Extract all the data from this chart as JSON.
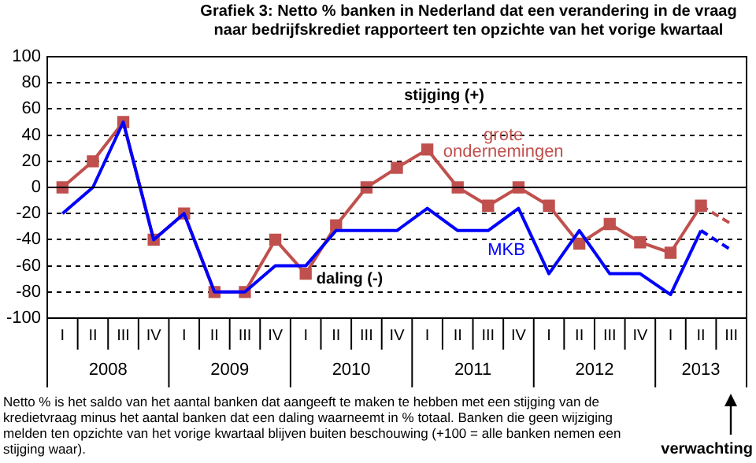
{
  "chart_data": {
    "type": "line",
    "title": "Grafiek 3: Netto % banken in Nederland dat een verandering in de vraag naar bedrijfskrediet rapporteert ten opzichte van het vorige kwartaal",
    "categories": [
      "I",
      "II",
      "III",
      "IV",
      "I",
      "II",
      "III",
      "IV",
      "I",
      "II",
      "III",
      "IV",
      "I",
      "II",
      "III",
      "IV",
      "I",
      "II",
      "III",
      "IV",
      "I",
      "II",
      "III"
    ],
    "series": [
      {
        "name": "MKB",
        "color": "#0000ff",
        "marker": "none",
        "values": [
          -20,
          0,
          50,
          -40,
          -20,
          -80,
          -80,
          -60,
          -60,
          -33,
          -33,
          -33,
          -16,
          -33,
          -33,
          -16,
          -66,
          -33,
          -66,
          -66,
          -82,
          -33,
          null
        ]
      },
      {
        "name": "grote ondernemingen",
        "color": "#c0504d",
        "marker": "square",
        "values": [
          0,
          20,
          50,
          -40,
          -20,
          -80,
          -80,
          -40,
          -66,
          -29,
          0,
          15,
          29,
          0,
          -14,
          0,
          -14,
          -43,
          -28,
          -42,
          -50,
          -14,
          null
        ]
      },
      {
        "color": "#0000ff",
        "marker": "none",
        "line_style": "dashed",
        "values": [
          null,
          null,
          null,
          null,
          null,
          null,
          null,
          null,
          null,
          null,
          null,
          null,
          null,
          null,
          null,
          null,
          null,
          null,
          null,
          null,
          null,
          -33,
          -48
        ]
      },
      {
        "color": "#c0504d",
        "marker": "none",
        "line_style": "dashed",
        "values": [
          null,
          null,
          null,
          null,
          null,
          null,
          null,
          null,
          null,
          null,
          null,
          null,
          null,
          null,
          null,
          null,
          null,
          null,
          null,
          null,
          null,
          -14,
          -28
        ]
      }
    ],
    "ylim": [
      -100,
      100
    ],
    "yticks": [
      -100,
      -80,
      -60,
      -40,
      -20,
      0,
      20,
      40,
      60,
      80,
      100
    ],
    "grid": "y",
    "legend": false,
    "ref_lines": [
      {
        "axis": "y",
        "value": 0,
        "color": "#000000",
        "line_style": "solid"
      }
    ],
    "annotations": [
      "stijging (+)",
      "daling (-)",
      "2008",
      "2009",
      "2010",
      "2011",
      "2012",
      "2013",
      "verwachting",
      "Netto % is het saldo van het aantal banken dat aangeeft te maken te hebben met een stijging van de kredietvraag minus het aantal banken dat een daling waarneemt in % totaal. Banken die geen wijziging melden ten opzichte van het vorige kwartaal blijven buiten beschouwing (+100 = alle banken nemen een stijging waar)."
    ]
  }
}
